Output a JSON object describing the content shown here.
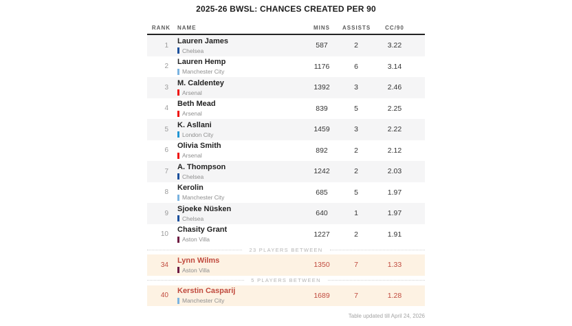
{
  "chart_data": {
    "type": "table",
    "title": "2025-26 BWSL: CHANCES CREATED PER 90",
    "columns": [
      "RANK",
      "NAME",
      "MINS",
      "ASSISTS",
      "CC/90"
    ],
    "rows": [
      {
        "type": "player",
        "rank": 1,
        "name": "Lauren James",
        "team": "Chelsea",
        "team_color": "chelsea",
        "mins": 587,
        "assists": 2,
        "cc90": 3.22,
        "shaded": true,
        "highlight": false
      },
      {
        "type": "player",
        "rank": 2,
        "name": "Lauren Hemp",
        "team": "Manchester City",
        "team_color": "manchester_city",
        "mins": 1176,
        "assists": 6,
        "cc90": 3.14,
        "shaded": false,
        "highlight": false
      },
      {
        "type": "player",
        "rank": 3,
        "name": "M. Caldentey",
        "team": "Arsenal",
        "team_color": "arsenal",
        "mins": 1392,
        "assists": 3,
        "cc90": 2.46,
        "shaded": true,
        "highlight": false
      },
      {
        "type": "player",
        "rank": 4,
        "name": "Beth Mead",
        "team": "Arsenal",
        "team_color": "arsenal",
        "mins": 839,
        "assists": 5,
        "cc90": 2.25,
        "shaded": false,
        "highlight": false
      },
      {
        "type": "player",
        "rank": 5,
        "name": "K. Asllani",
        "team": "London City",
        "team_color": "london_city",
        "mins": 1459,
        "assists": 3,
        "cc90": 2.22,
        "shaded": true,
        "highlight": false
      },
      {
        "type": "player",
        "rank": 6,
        "name": "Olivia Smith",
        "team": "Arsenal",
        "team_color": "arsenal",
        "mins": 892,
        "assists": 2,
        "cc90": 2.12,
        "shaded": false,
        "highlight": false
      },
      {
        "type": "player",
        "rank": 7,
        "name": "A. Thompson",
        "team": "Chelsea",
        "team_color": "chelsea",
        "mins": 1242,
        "assists": 2,
        "cc90": 2.03,
        "shaded": true,
        "highlight": false
      },
      {
        "type": "player",
        "rank": 8,
        "name": "Kerolin",
        "team": "Manchester City",
        "team_color": "manchester_city",
        "mins": 685,
        "assists": 5,
        "cc90": 1.97,
        "shaded": false,
        "highlight": false
      },
      {
        "type": "player",
        "rank": 9,
        "name": "Sjoeke Nüsken",
        "team": "Chelsea",
        "team_color": "chelsea",
        "mins": 640,
        "assists": 1,
        "cc90": 1.97,
        "shaded": true,
        "highlight": false
      },
      {
        "type": "player",
        "rank": 10,
        "name": "Chasity Grant",
        "team": "Aston Villa",
        "team_color": "aston_villa",
        "mins": 1227,
        "assists": 2,
        "cc90": 1.91,
        "shaded": false,
        "highlight": false
      },
      {
        "type": "separator",
        "label": "23 PLAYERS BETWEEN"
      },
      {
        "type": "player",
        "rank": 34,
        "name": "Lynn Wilms",
        "team": "Aston Villa",
        "team_color": "aston_villa",
        "mins": 1350,
        "assists": 7,
        "cc90": 1.33,
        "shaded": false,
        "highlight": true
      },
      {
        "type": "separator",
        "label": "5 PLAYERS BETWEEN"
      },
      {
        "type": "player",
        "rank": 40,
        "name": "Kerstin Casparij",
        "team": "Manchester City",
        "team_color": "manchester_city",
        "mins": 1689,
        "assists": 7,
        "cc90": 1.28,
        "shaded": false,
        "highlight": true
      }
    ],
    "footer": "Table updated till April 24, 2026"
  },
  "colors": {
    "chelsea": "#1a4f9c",
    "manchester_city": "#7ab3e0",
    "arsenal": "#ef100c",
    "london_city": "#2196d4",
    "aston_villa": "#6d1a41",
    "highlight_bg": "#fdf2e3",
    "highlight_text": "#c04a3e",
    "row_alt_bg": "#f5f5f6",
    "header_rule": "#222222"
  }
}
